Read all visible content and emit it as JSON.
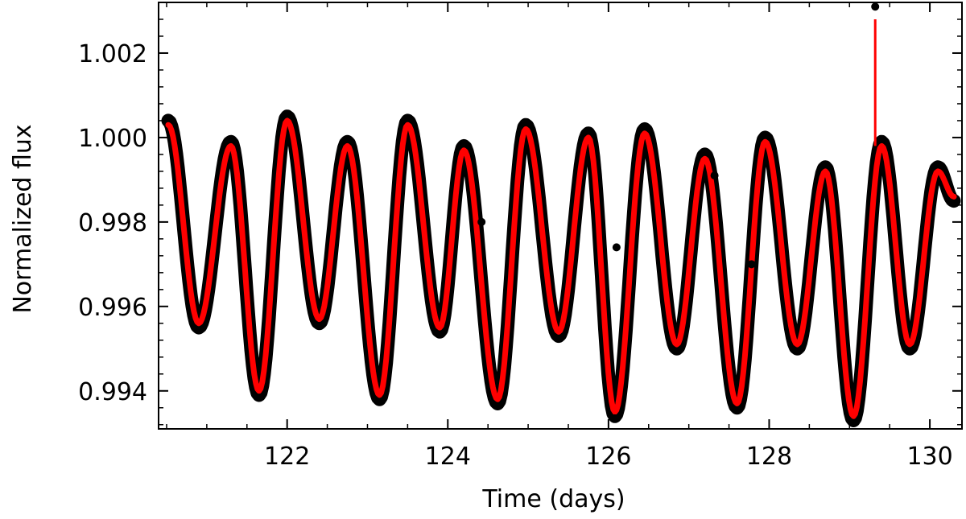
{
  "chart_data": {
    "type": "line",
    "title": "",
    "xlabel": "Time (days)",
    "ylabel": "Normalized flux",
    "xlim": [
      120.4,
      130.4
    ],
    "ylim": [
      0.9931,
      1.0032
    ],
    "x_ticks": [
      122,
      124,
      126,
      128,
      130
    ],
    "x_tick_labels": [
      "122",
      "124",
      "126",
      "128",
      "130"
    ],
    "y_ticks": [
      0.994,
      0.996,
      0.998,
      1.0,
      1.002
    ],
    "y_tick_labels": [
      "0.994",
      "0.996",
      "0.998",
      "1.000",
      "1.002"
    ],
    "grid": false,
    "legend": "none",
    "series": [
      {
        "style": "black points (observed)",
        "color": "#000000",
        "x": [
          120.52,
          120.9,
          121.3,
          121.65,
          122.0,
          122.4,
          122.75,
          123.15,
          123.5,
          123.9,
          124.2,
          124.62,
          124.97,
          125.38,
          125.75,
          126.08,
          126.45,
          126.85,
          127.2,
          127.6,
          127.95,
          128.35,
          128.7,
          129.05,
          129.4,
          129.75,
          130.1,
          130.3
        ],
        "y": [
          1.0004,
          0.9955,
          0.9999,
          0.9939,
          1.0005,
          0.9956,
          0.9999,
          0.9938,
          1.0004,
          0.9954,
          0.9998,
          0.9937,
          1.0003,
          0.9953,
          1.0001,
          0.9934,
          1.0002,
          0.995,
          0.9996,
          0.9936,
          1.0,
          0.995,
          0.9993,
          0.9933,
          0.9999,
          0.995,
          0.9993,
          0.9985
        ]
      },
      {
        "style": "red line (model)",
        "color": "#ff0000",
        "x": [
          120.52,
          120.9,
          121.3,
          121.65,
          122.0,
          122.4,
          122.75,
          123.15,
          123.5,
          123.9,
          124.2,
          124.62,
          124.97,
          125.38,
          125.75,
          126.08,
          126.45,
          126.85,
          127.2,
          127.6,
          127.95,
          128.35,
          128.7,
          129.05,
          129.4,
          129.75,
          130.1,
          130.3
        ],
        "y": [
          1.0003,
          0.9956,
          0.9998,
          0.994,
          1.0004,
          0.9957,
          0.9998,
          0.9939,
          1.0003,
          0.9955,
          0.9997,
          0.9938,
          1.0002,
          0.9954,
          1.0,
          0.9935,
          1.0001,
          0.9951,
          0.9995,
          0.9937,
          0.9999,
          0.9951,
          0.9992,
          0.9934,
          0.9998,
          0.9951,
          0.9992,
          0.9986
        ]
      }
    ],
    "outliers": [
      {
        "x": 129.32,
        "y": 1.0031
      },
      {
        "x": 126.08,
        "y": 0.99335
      },
      {
        "x": 127.32,
        "y": 0.9991
      },
      {
        "x": 124.42,
        "y": 0.998
      },
      {
        "x": 127.78,
        "y": 0.997
      },
      {
        "x": 126.1,
        "y": 0.9974
      }
    ],
    "spike": {
      "x": 129.32,
      "y_top": 1.0028,
      "y_bottom": 0.9998,
      "color": "#ff0000"
    }
  }
}
